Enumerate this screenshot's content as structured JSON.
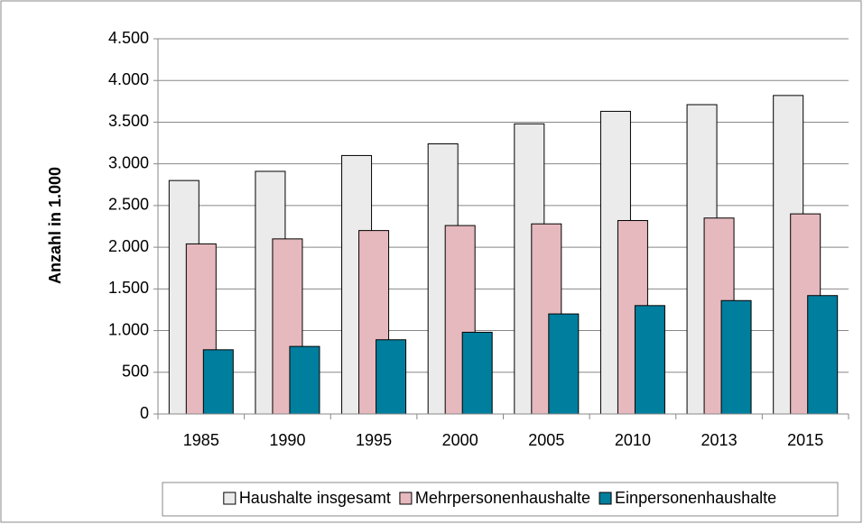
{
  "chart_data": {
    "type": "bar",
    "y_label": "Anzahl in 1.000",
    "categories": [
      "1985",
      "1990",
      "1995",
      "2000",
      "2005",
      "2010",
      "2013",
      "2015"
    ],
    "series": [
      {
        "name": "Haushalte insgesamt",
        "color": "#ebebeb",
        "values": [
          2800,
          2910,
          3100,
          3240,
          3480,
          3630,
          3710,
          3820
        ]
      },
      {
        "name": "Mehrpersonenhaushalte",
        "color": "#e6b9be",
        "values": [
          2040,
          2100,
          2200,
          2260,
          2280,
          2320,
          2350,
          2400
        ]
      },
      {
        "name": "Einpersonenhaushalte",
        "color": "#007e9e",
        "values": [
          770,
          810,
          890,
          980,
          1200,
          1300,
          1360,
          1420
        ]
      }
    ],
    "ylim": [
      0,
      4500
    ],
    "yticks": [
      0,
      500,
      {
        "value": 1000,
        "label": "1.000"
      },
      {
        "value": 1500,
        "label": "1.500"
      },
      {
        "value": 2000,
        "label": "2.000"
      },
      {
        "value": 2500,
        "label": "2.500"
      },
      {
        "value": 3000,
        "label": "3.000"
      },
      {
        "value": 3500,
        "label": "3.500"
      },
      {
        "value": 4000,
        "label": "4.000"
      },
      {
        "value": 4500,
        "label": "4.500"
      }
    ],
    "grid": true,
    "legend": "bottom"
  }
}
